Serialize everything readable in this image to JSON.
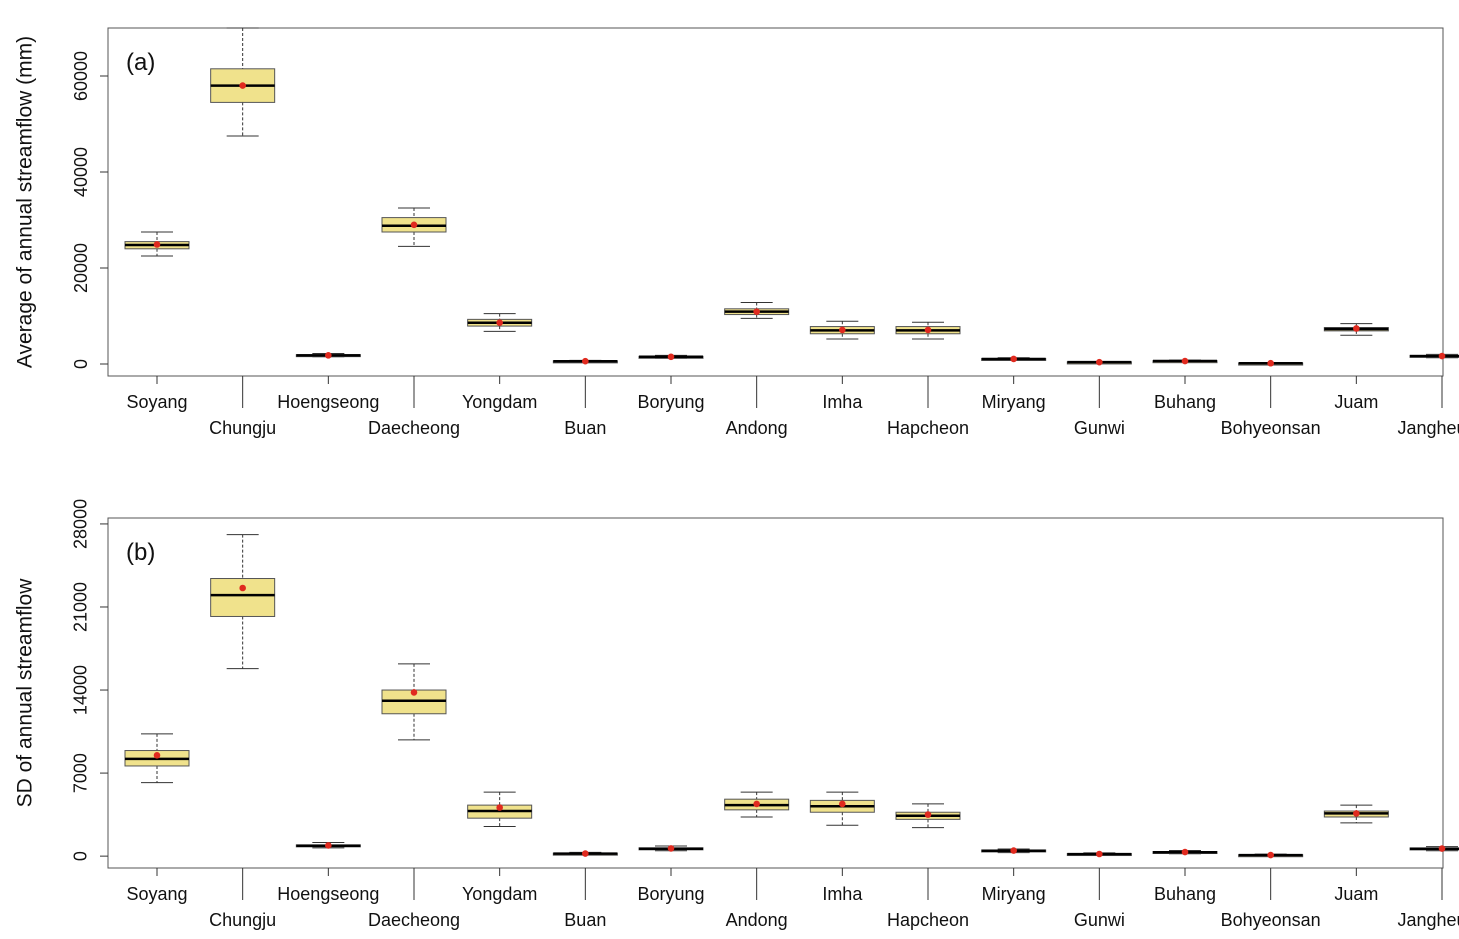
{
  "chart_data": [
    {
      "type": "box",
      "panel_label": "(a)",
      "ylabel": "Average of annual streamflow (mm)",
      "ylim": [
        -2500,
        70000
      ],
      "yticks": [
        0,
        20000,
        40000,
        60000
      ],
      "ytick_labels": [
        "0",
        "20000",
        "40000",
        "60000"
      ],
      "categories": [
        "Soyang",
        "Chungju",
        "Hoengseong",
        "Daecheong",
        "Yongdam",
        "Buan",
        "Boryung",
        "Andong",
        "Imha",
        "Hapcheon",
        "Miryang",
        "Gunwi",
        "Buhang",
        "Bohyeonsan",
        "Juam",
        "Jangheung"
      ],
      "boxes": [
        {
          "min": 22500,
          "q1": 24000,
          "median": 24800,
          "q3": 25500,
          "max": 27500,
          "mean": 24900
        },
        {
          "min": 47500,
          "q1": 54500,
          "median": 58000,
          "q3": 61500,
          "max": 70000,
          "mean": 58000
        },
        {
          "min": 1500,
          "q1": 1700,
          "median": 1800,
          "q3": 1950,
          "max": 2200,
          "mean": 1800
        },
        {
          "min": 24500,
          "q1": 27500,
          "median": 28800,
          "q3": 30500,
          "max": 32500,
          "mean": 29000
        },
        {
          "min": 6800,
          "q1": 7900,
          "median": 8600,
          "q3": 9300,
          "max": 10500,
          "mean": 8600
        },
        {
          "min": 400,
          "q1": 520,
          "median": 580,
          "q3": 650,
          "max": 750,
          "mean": 580
        },
        {
          "min": 1200,
          "q1": 1400,
          "median": 1500,
          "q3": 1600,
          "max": 1800,
          "mean": 1500
        },
        {
          "min": 9500,
          "q1": 10300,
          "median": 10900,
          "q3": 11500,
          "max": 12800,
          "mean": 10900
        },
        {
          "min": 5200,
          "q1": 6300,
          "median": 7000,
          "q3": 7800,
          "max": 8900,
          "mean": 7100
        },
        {
          "min": 5200,
          "q1": 6300,
          "median": 7000,
          "q3": 7800,
          "max": 8700,
          "mean": 7100
        },
        {
          "min": 800,
          "q1": 950,
          "median": 1050,
          "q3": 1150,
          "max": 1300,
          "mean": 1050
        },
        {
          "min": 250,
          "q1": 330,
          "median": 380,
          "q3": 430,
          "max": 500,
          "mean": 380
        },
        {
          "min": 450,
          "q1": 550,
          "median": 620,
          "q3": 690,
          "max": 800,
          "mean": 620
        },
        {
          "min": 80,
          "q1": 130,
          "median": 160,
          "q3": 190,
          "max": 250,
          "mean": 160
        },
        {
          "min": 6000,
          "q1": 6900,
          "median": 7300,
          "q3": 7600,
          "max": 8400,
          "mean": 7400
        },
        {
          "min": 1300,
          "q1": 1500,
          "median": 1650,
          "q3": 1800,
          "max": 2000,
          "mean": 1650
        }
      ]
    },
    {
      "type": "box",
      "panel_label": "(b)",
      "ylabel": "SD of annual streamflow",
      "ylim": [
        -1000,
        28500
      ],
      "yticks": [
        0,
        7000,
        14000,
        21000,
        28000
      ],
      "ytick_labels": [
        "0",
        "7000",
        "14000",
        "21000",
        "28000"
      ],
      "categories": [
        "Soyang",
        "Chungju",
        "Hoengseong",
        "Daecheong",
        "Yongdam",
        "Buan",
        "Boryung",
        "Andong",
        "Imha",
        "Hapcheon",
        "Miryang",
        "Gunwi",
        "Buhang",
        "Bohyeonsan",
        "Juam",
        "Jangheung"
      ],
      "boxes": [
        {
          "min": 6200,
          "q1": 7600,
          "median": 8200,
          "q3": 8900,
          "max": 10300,
          "mean": 8500
        },
        {
          "min": 15800,
          "q1": 20200,
          "median": 22000,
          "q3": 23400,
          "max": 27100,
          "mean": 22600
        },
        {
          "min": 700,
          "q1": 800,
          "median": 880,
          "q3": 950,
          "max": 1150,
          "mean": 900
        },
        {
          "min": 9800,
          "q1": 12000,
          "median": 13100,
          "q3": 14000,
          "max": 16200,
          "mean": 13800
        },
        {
          "min": 2500,
          "q1": 3200,
          "median": 3800,
          "q3": 4300,
          "max": 5400,
          "mean": 4100
        },
        {
          "min": 100,
          "q1": 170,
          "median": 210,
          "q3": 250,
          "max": 320,
          "mean": 220
        },
        {
          "min": 450,
          "q1": 550,
          "median": 620,
          "q3": 700,
          "max": 850,
          "mean": 650
        },
        {
          "min": 3300,
          "q1": 3900,
          "median": 4300,
          "q3": 4800,
          "max": 5400,
          "mean": 4400
        },
        {
          "min": 2600,
          "q1": 3700,
          "median": 4200,
          "q3": 4700,
          "max": 5400,
          "mean": 4400
        },
        {
          "min": 2400,
          "q1": 3100,
          "median": 3400,
          "q3": 3700,
          "max": 4400,
          "mean": 3500
        },
        {
          "min": 300,
          "q1": 380,
          "median": 450,
          "q3": 520,
          "max": 600,
          "mean": 470
        },
        {
          "min": 80,
          "q1": 130,
          "median": 170,
          "q3": 220,
          "max": 280,
          "mean": 180
        },
        {
          "min": 200,
          "q1": 280,
          "median": 330,
          "q3": 390,
          "max": 470,
          "mean": 340
        },
        {
          "min": 20,
          "q1": 60,
          "median": 90,
          "q3": 120,
          "max": 170,
          "mean": 90
        },
        {
          "min": 2800,
          "q1": 3300,
          "median": 3600,
          "q3": 3800,
          "max": 4300,
          "mean": 3600
        },
        {
          "min": 450,
          "q1": 550,
          "median": 620,
          "q3": 690,
          "max": 800,
          "mean": 640
        }
      ]
    }
  ]
}
